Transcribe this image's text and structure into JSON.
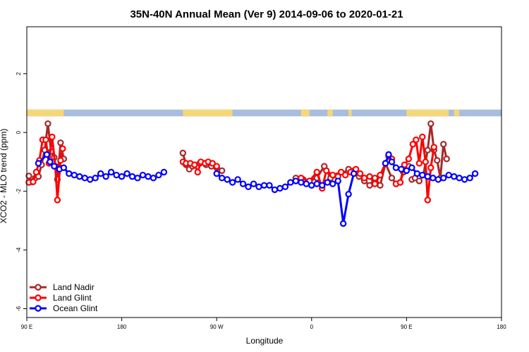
{
  "chart_data": {
    "type": "line",
    "title": "35N-40N Annual Mean (Ver 9)   2014-09-06 to 2020-01-21",
    "xlabel": "Longitude",
    "ylabel": "XCO2 - MLO trend (ppm)",
    "x_ticks": [
      {
        "value": 90,
        "label": "90 E"
      },
      {
        "value": 180,
        "label": "180"
      },
      {
        "value": 270,
        "label": "90 W"
      },
      {
        "value": 360,
        "label": "0"
      },
      {
        "value": 450,
        "label": "90 E"
      },
      {
        "value": 540,
        "label": "180"
      }
    ],
    "y_ticks": [
      {
        "value": 2,
        "label": "2"
      },
      {
        "value": 0,
        "label": "0"
      },
      {
        "value": -2,
        "label": "-2"
      },
      {
        "value": -4,
        "label": "-4"
      },
      {
        "value": -6,
        "label": "-6"
      }
    ],
    "xlim": [
      90,
      540
    ],
    "ylim": [
      -6.3,
      3.6
    ],
    "grid": false,
    "legend_position": "bottom-left",
    "land_ocean_strip": {
      "y_range": [
        0.55,
        0.78
      ],
      "ocean_color": "#a8bede",
      "land_color": "#f5d77a",
      "land_segments": [
        [
          90,
          125
        ],
        [
          238,
          285
        ],
        [
          350,
          358
        ],
        [
          375,
          380
        ],
        [
          395,
          398
        ],
        [
          450,
          490
        ],
        [
          495,
          500
        ]
      ]
    },
    "series": [
      {
        "name": "Land Nadir",
        "color": "#a52a2a",
        "segments": [
          [
            [
              92,
              -1.48
            ],
            [
              95,
              -1.68
            ],
            [
              98,
              -1.55
            ],
            [
              101,
              -1.5
            ],
            [
              104,
              -1.1
            ],
            [
              107,
              -0.6
            ],
            [
              110,
              0.3
            ],
            [
              113,
              -0.65
            ],
            [
              116,
              -0.85
            ],
            [
              119,
              -1.6
            ],
            [
              122,
              -0.35
            ],
            [
              125,
              -0.9
            ]
          ],
          [
            [
              238,
              -0.7
            ],
            [
              241,
              -1.1
            ],
            [
              244,
              -1.25
            ],
            [
              247,
              -1.15
            ],
            [
              254,
              -1.05
            ],
            [
              260,
              -1.1
            ],
            [
              265,
              -1.15
            ],
            [
              270,
              -1.2
            ],
            [
              275,
              -1.3
            ]
          ],
          [
            [
              345,
              -1.55
            ],
            [
              352,
              -1.6
            ],
            [
              358,
              -1.65
            ],
            [
              365,
              -1.55
            ],
            [
              372,
              -1.15
            ],
            [
              378,
              -1.55
            ],
            [
              385,
              -1.5
            ],
            [
              395,
              -1.25
            ],
            [
              400,
              -1.3
            ],
            [
              405,
              -1.5
            ],
            [
              410,
              -1.65
            ],
            [
              415,
              -1.8
            ],
            [
              420,
              -1.55
            ],
            [
              425,
              -1.8
            ],
            [
              430,
              -1.05
            ],
            [
              436,
              -1.55
            ],
            [
              440,
              -1.75
            ],
            [
              444,
              -1.7
            ],
            [
              447,
              -1.35
            ],
            [
              452,
              -1.15
            ]
          ],
          [
            [
              455,
              -1.6
            ],
            [
              458,
              -1.55
            ],
            [
              462,
              -1.65
            ],
            [
              466,
              -1.45
            ],
            [
              470,
              -0.6
            ],
            [
              473,
              0.3
            ],
            [
              476,
              -0.6
            ],
            [
              479,
              -0.95
            ],
            [
              482,
              -1.55
            ],
            [
              485,
              -0.4
            ],
            [
              488,
              -0.9
            ]
          ]
        ]
      },
      {
        "name": "Land Glint",
        "color": "#ff0000",
        "segments": [
          [
            [
              92,
              -1.7
            ],
            [
              96,
              -1.68
            ],
            [
              99,
              -1.35
            ],
            [
              102,
              -0.95
            ],
            [
              105,
              -0.25
            ],
            [
              108,
              -0.25
            ],
            [
              111,
              -1.05
            ],
            [
              114,
              -0.15
            ],
            [
              117,
              -1.15
            ],
            [
              119,
              -2.3
            ],
            [
              122,
              -0.95
            ],
            [
              124,
              -0.55
            ]
          ],
          [
            [
              238,
              -1.0
            ],
            [
              241,
              -1.05
            ],
            [
              245,
              -1.05
            ],
            [
              249,
              -1.1
            ],
            [
              252,
              -1.35
            ],
            [
              255,
              -1.0
            ],
            [
              259,
              -1.05
            ],
            [
              262,
              -1.0
            ],
            [
              266,
              -1.05
            ],
            [
              270,
              -1.15
            ]
          ],
          [
            [
              350,
              -1.55
            ],
            [
              358,
              -1.65
            ],
            [
              365,
              -1.35
            ],
            [
              370,
              -1.9
            ],
            [
              374,
              -1.3
            ],
            [
              380,
              -1.45
            ],
            [
              388,
              -1.35
            ],
            [
              392,
              -1.45
            ],
            [
              397,
              -1.35
            ],
            [
              402,
              -1.25
            ],
            [
              406,
              -1.4
            ],
            [
              410,
              -1.55
            ],
            [
              415,
              -1.5
            ],
            [
              420,
              -1.75
            ],
            [
              425,
              -1.45
            ],
            [
              430,
              -1.05
            ],
            [
              433,
              -0.8
            ],
            [
              436,
              -0.9
            ]
          ],
          [
            [
              440,
              -1.75
            ],
            [
              444,
              -1.7
            ],
            [
              448,
              -1.1
            ],
            [
              452,
              -0.9
            ],
            [
              456,
              -0.4
            ],
            [
              459,
              -0.25
            ],
            [
              462,
              -1.05
            ],
            [
              465,
              -0.15
            ],
            [
              468,
              -1.0
            ],
            [
              470,
              -2.3
            ],
            [
              473,
              -1.2
            ],
            [
              476,
              -0.5
            ]
          ]
        ]
      },
      {
        "name": "Ocean Glint",
        "color": "#0000ff",
        "segments": [
          [
            [
              101,
              -1.05
            ],
            [
              109,
              -0.75
            ],
            [
              112,
              -1.0
            ],
            [
              116,
              -1.15
            ],
            [
              121,
              -1.25
            ],
            [
              125,
              -1.2
            ],
            [
              130,
              -1.4
            ],
            [
              135,
              -1.45
            ],
            [
              140,
              -1.5
            ],
            [
              145,
              -1.55
            ],
            [
              150,
              -1.6
            ],
            [
              155,
              -1.55
            ],
            [
              160,
              -1.4
            ],
            [
              165,
              -1.5
            ],
            [
              170,
              -1.35
            ],
            [
              175,
              -1.45
            ],
            [
              180,
              -1.5
            ],
            [
              185,
              -1.4
            ],
            [
              190,
              -1.5
            ],
            [
              195,
              -1.55
            ],
            [
              200,
              -1.45
            ],
            [
              205,
              -1.5
            ],
            [
              210,
              -1.55
            ],
            [
              215,
              -1.45
            ],
            [
              220,
              -1.35
            ]
          ],
          [
            [
              270,
              -1.4
            ],
            [
              275,
              -1.55
            ],
            [
              280,
              -1.6
            ],
            [
              285,
              -1.7
            ],
            [
              290,
              -1.6
            ],
            [
              295,
              -1.75
            ],
            [
              300,
              -1.85
            ],
            [
              305,
              -1.75
            ],
            [
              310,
              -1.85
            ],
            [
              315,
              -1.8
            ],
            [
              320,
              -1.8
            ],
            [
              325,
              -1.95
            ],
            [
              330,
              -1.9
            ],
            [
              335,
              -1.85
            ],
            [
              340,
              -1.7
            ],
            [
              345,
              -1.65
            ],
            [
              350,
              -1.7
            ],
            [
              355,
              -1.75
            ],
            [
              360,
              -1.8
            ],
            [
              365,
              -1.75
            ],
            [
              370,
              -1.8
            ],
            [
              375,
              -1.7
            ],
            [
              380,
              -1.75
            ],
            [
              385,
              -1.65
            ],
            [
              390,
              -3.1
            ],
            [
              395,
              -2.1
            ],
            [
              400,
              -1.4
            ]
          ],
          [
            [
              430,
              -1.05
            ],
            [
              433,
              -0.75
            ],
            [
              436,
              -1.0
            ],
            [
              440,
              -1.2
            ],
            [
              445,
              -1.25
            ],
            [
              450,
              -1.3
            ],
            [
              455,
              -1.2
            ],
            [
              460,
              -1.4
            ],
            [
              465,
              -1.45
            ],
            [
              470,
              -1.5
            ],
            [
              475,
              -1.55
            ],
            [
              480,
              -1.6
            ],
            [
              485,
              -1.55
            ],
            [
              490,
              -1.45
            ],
            [
              495,
              -1.5
            ],
            [
              500,
              -1.55
            ],
            [
              505,
              -1.6
            ],
            [
              510,
              -1.55
            ],
            [
              515,
              -1.4
            ]
          ]
        ]
      }
    ]
  }
}
